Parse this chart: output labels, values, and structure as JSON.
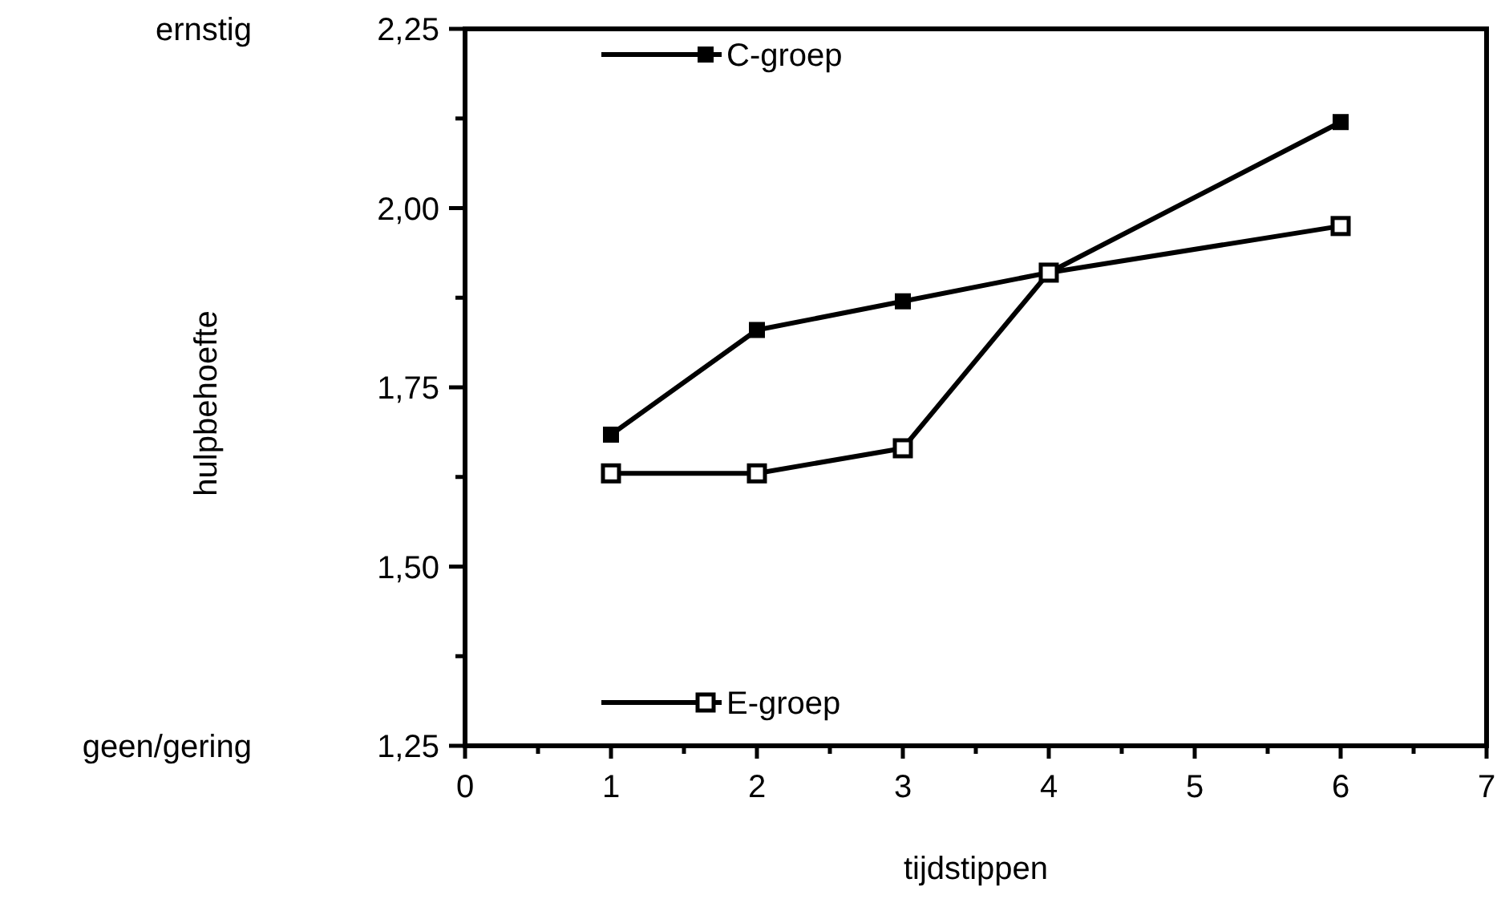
{
  "chart_data": {
    "type": "line",
    "xlabel": "tijdstippen",
    "ylabel": "hulpbehoefte",
    "annotations": [
      "ernstig",
      "geen/gering"
    ],
    "x": [
      1,
      2,
      3,
      4,
      6
    ],
    "series": [
      {
        "name": "C-groep",
        "color": "#000000",
        "values": [
          1.684,
          1.83,
          1.87,
          1.91,
          2.12
        ]
      },
      {
        "name": "E-groep",
        "color": "#000000",
        "values": [
          1.63,
          1.63,
          1.665,
          1.91,
          1.975
        ]
      }
    ],
    "xlim": [
      0,
      7
    ],
    "xticks": [
      0,
      {
        "value": 0.5,
        "label": null
      },
      1,
      {
        "value": 1.5,
        "label": null
      },
      2,
      {
        "value": 2.5,
        "label": null
      },
      3,
      {
        "value": 3.5,
        "label": null
      },
      4,
      {
        "value": 4.5,
        "label": null
      },
      5,
      {
        "value": 5.5,
        "label": null
      },
      6,
      {
        "value": 6.5,
        "label": null
      },
      7
    ],
    "ylim": [
      1.25,
      2.25
    ],
    "yticks": [
      {
        "value": 1.25,
        "label": "1,25"
      },
      {
        "value": 1.375,
        "label": null
      },
      {
        "value": 1.5,
        "label": "1,50"
      },
      {
        "value": 1.625,
        "label": null
      },
      {
        "value": 1.75,
        "label": "1,75"
      },
      {
        "value": 1.875,
        "label": null
      },
      {
        "value": 2,
        "label": "2,00"
      },
      {
        "value": 2.125,
        "label": null
      },
      {
        "value": 2.25,
        "label": "2,25"
      }
    ],
    "marker": "square",
    "line_style": "solid",
    "legend": "left",
    "grid": false
  }
}
